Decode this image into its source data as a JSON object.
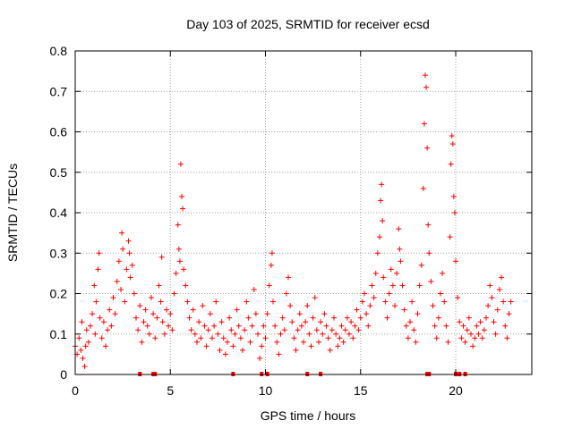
{
  "chart_data": {
    "type": "scatter",
    "title": "Day 103 of 2025, SRMTID for receiver ecsd",
    "xlabel": "GPS time / hours",
    "ylabel": "SRMTID / TECUs",
    "xlim": [
      0,
      24
    ],
    "ylim": [
      0,
      0.8
    ],
    "x_ticks": [
      0,
      5,
      10,
      15,
      20
    ],
    "x_tick_labels": [
      "0",
      "5",
      "10",
      "15",
      "20"
    ],
    "y_ticks": [
      0,
      0.1,
      0.2,
      0.3,
      0.4,
      0.5,
      0.6,
      0.7,
      0.8
    ],
    "y_tick_labels": [
      "0",
      "0.1",
      "0.2",
      "0.3",
      "0.4",
      "0.5",
      "0.6",
      "0.7",
      "0.8"
    ],
    "grid": true,
    "marker": "+",
    "marker_color": "#ff0000",
    "series": [
      {
        "name": "SRMTID",
        "points": [
          [
            0.0,
            0.07
          ],
          [
            0.1,
            0.05
          ],
          [
            0.2,
            0.09
          ],
          [
            0.3,
            0.06
          ],
          [
            0.35,
            0.13
          ],
          [
            0.4,
            0.04
          ],
          [
            0.5,
            0.02
          ],
          [
            0.55,
            0.07
          ],
          [
            0.6,
            0.11
          ],
          [
            0.7,
            0.08
          ],
          [
            0.8,
            0.12
          ],
          [
            0.9,
            0.15
          ],
          [
            1.0,
            0.22
          ],
          [
            1.05,
            0.1
          ],
          [
            1.1,
            0.18
          ],
          [
            1.2,
            0.26
          ],
          [
            1.25,
            0.3
          ],
          [
            1.3,
            0.14
          ],
          [
            1.4,
            0.09
          ],
          [
            1.5,
            0.13
          ],
          [
            1.6,
            0.07
          ],
          [
            1.7,
            0.11
          ],
          [
            1.8,
            0.16
          ],
          [
            1.9,
            0.12
          ],
          [
            2.0,
            0.19
          ],
          [
            2.1,
            0.15
          ],
          [
            2.2,
            0.23
          ],
          [
            2.3,
            0.28
          ],
          [
            2.4,
            0.21
          ],
          [
            2.45,
            0.35
          ],
          [
            2.5,
            0.31
          ],
          [
            2.6,
            0.18
          ],
          [
            2.7,
            0.26
          ],
          [
            2.8,
            0.33
          ],
          [
            2.85,
            0.3
          ],
          [
            2.9,
            0.24
          ],
          [
            3.0,
            0.27
          ],
          [
            3.1,
            0.2
          ],
          [
            3.2,
            0.14
          ],
          [
            3.3,
            0.11
          ],
          [
            3.4,
            0.17
          ],
          [
            3.5,
            0.08
          ],
          [
            3.6,
            0.13
          ],
          [
            3.7,
            0.16
          ],
          [
            3.8,
            0.12
          ],
          [
            3.9,
            0.1
          ],
          [
            4.0,
            0.19
          ],
          [
            4.1,
            0.15
          ],
          [
            4.2,
            0.09
          ],
          [
            4.3,
            0.14
          ],
          [
            4.4,
            0.22
          ],
          [
            4.5,
            0.18
          ],
          [
            4.55,
            0.29
          ],
          [
            4.6,
            0.13
          ],
          [
            4.7,
            0.1
          ],
          [
            4.8,
            0.16
          ],
          [
            4.9,
            0.12
          ],
          [
            5.0,
            0.15
          ],
          [
            5.1,
            0.11
          ],
          [
            5.2,
            0.2
          ],
          [
            5.3,
            0.25
          ],
          [
            5.4,
            0.37
          ],
          [
            5.45,
            0.31
          ],
          [
            5.5,
            0.28
          ],
          [
            5.55,
            0.52
          ],
          [
            5.6,
            0.44
          ],
          [
            5.65,
            0.41
          ],
          [
            5.7,
            0.26
          ],
          [
            5.8,
            0.22
          ],
          [
            5.9,
            0.18
          ],
          [
            6.0,
            0.14
          ],
          [
            6.1,
            0.11
          ],
          [
            6.2,
            0.16
          ],
          [
            6.3,
            0.1
          ],
          [
            6.4,
            0.08
          ],
          [
            6.5,
            0.13
          ],
          [
            6.6,
            0.09
          ],
          [
            6.7,
            0.17
          ],
          [
            6.8,
            0.12
          ],
          [
            6.9,
            0.07
          ],
          [
            7.0,
            0.11
          ],
          [
            7.1,
            0.15
          ],
          [
            7.2,
            0.09
          ],
          [
            7.3,
            0.12
          ],
          [
            7.4,
            0.18
          ],
          [
            7.5,
            0.1
          ],
          [
            7.6,
            0.06
          ],
          [
            7.7,
            0.13
          ],
          [
            7.8,
            0.09
          ],
          [
            7.9,
            0.05
          ],
          [
            8.0,
            0.08
          ],
          [
            8.1,
            0.14
          ],
          [
            8.2,
            0.11
          ],
          [
            8.3,
            0.07
          ],
          [
            8.4,
            0.1
          ],
          [
            8.5,
            0.16
          ],
          [
            8.6,
            0.12
          ],
          [
            8.7,
            0.09
          ],
          [
            8.8,
            0.06
          ],
          [
            8.9,
            0.11
          ],
          [
            9.0,
            0.18
          ],
          [
            9.1,
            0.14
          ],
          [
            9.2,
            0.08
          ],
          [
            9.3,
            0.12
          ],
          [
            9.4,
            0.21
          ],
          [
            9.5,
            0.15
          ],
          [
            9.6,
            0.1
          ],
          [
            9.7,
            0.04
          ],
          [
            9.8,
            0.07
          ],
          [
            9.9,
            0.12
          ],
          [
            10.0,
            0.09
          ],
          [
            10.1,
            0.15
          ],
          [
            10.2,
            0.22
          ],
          [
            10.3,
            0.27
          ],
          [
            10.35,
            0.3
          ],
          [
            10.4,
            0.18
          ],
          [
            10.5,
            0.12
          ],
          [
            10.6,
            0.08
          ],
          [
            10.7,
            0.05
          ],
          [
            10.8,
            0.1
          ],
          [
            10.9,
            0.14
          ],
          [
            11.0,
            0.11
          ],
          [
            11.1,
            0.2
          ],
          [
            11.2,
            0.24
          ],
          [
            11.3,
            0.17
          ],
          [
            11.4,
            0.13
          ],
          [
            11.5,
            0.09
          ],
          [
            11.6,
            0.06
          ],
          [
            11.7,
            0.11
          ],
          [
            11.8,
            0.15
          ],
          [
            11.9,
            0.12
          ],
          [
            12.0,
            0.08
          ],
          [
            12.1,
            0.13
          ],
          [
            12.2,
            0.17
          ],
          [
            12.3,
            0.1
          ],
          [
            12.4,
            0.07
          ],
          [
            12.5,
            0.14
          ],
          [
            12.6,
            0.19
          ],
          [
            12.7,
            0.11
          ],
          [
            12.8,
            0.08
          ],
          [
            12.9,
            0.13
          ],
          [
            13.0,
            0.1
          ],
          [
            13.1,
            0.15
          ],
          [
            13.2,
            0.12
          ],
          [
            13.3,
            0.09
          ],
          [
            13.4,
            0.06
          ],
          [
            13.5,
            0.11
          ],
          [
            13.6,
            0.14
          ],
          [
            13.7,
            0.1
          ],
          [
            13.8,
            0.07
          ],
          [
            13.9,
            0.09
          ],
          [
            14.0,
            0.12
          ],
          [
            14.1,
            0.08
          ],
          [
            14.2,
            0.11
          ],
          [
            14.3,
            0.14
          ],
          [
            14.4,
            0.1
          ],
          [
            14.5,
            0.13
          ],
          [
            14.6,
            0.09
          ],
          [
            14.7,
            0.12
          ],
          [
            14.8,
            0.16
          ],
          [
            14.9,
            0.11
          ],
          [
            15.0,
            0.14
          ],
          [
            15.1,
            0.18
          ],
          [
            15.2,
            0.2
          ],
          [
            15.3,
            0.15
          ],
          [
            15.4,
            0.12
          ],
          [
            15.5,
            0.17
          ],
          [
            15.6,
            0.22
          ],
          [
            15.7,
            0.19
          ],
          [
            15.8,
            0.25
          ],
          [
            15.9,
            0.3
          ],
          [
            16.0,
            0.34
          ],
          [
            16.05,
            0.43
          ],
          [
            16.1,
            0.47
          ],
          [
            16.15,
            0.38
          ],
          [
            16.2,
            0.24
          ],
          [
            16.3,
            0.18
          ],
          [
            16.4,
            0.14
          ],
          [
            16.5,
            0.2
          ],
          [
            16.6,
            0.26
          ],
          [
            16.7,
            0.22
          ],
          [
            16.8,
            0.17
          ],
          [
            16.9,
            0.25
          ],
          [
            17.0,
            0.36
          ],
          [
            17.05,
            0.31
          ],
          [
            17.1,
            0.28
          ],
          [
            17.2,
            0.22
          ],
          [
            17.3,
            0.16
          ],
          [
            17.4,
            0.12
          ],
          [
            17.5,
            0.09
          ],
          [
            17.6,
            0.13
          ],
          [
            17.7,
            0.18
          ],
          [
            17.8,
            0.11
          ],
          [
            17.9,
            0.08
          ],
          [
            18.0,
            0.15
          ],
          [
            18.1,
            0.22
          ],
          [
            18.2,
            0.27
          ],
          [
            18.3,
            0.46
          ],
          [
            18.35,
            0.62
          ],
          [
            18.4,
            0.74
          ],
          [
            18.45,
            0.71
          ],
          [
            18.5,
            0.56
          ],
          [
            18.55,
            0.37
          ],
          [
            18.6,
            0.3
          ],
          [
            18.7,
            0.23
          ],
          [
            18.8,
            0.17
          ],
          [
            18.9,
            0.12
          ],
          [
            19.0,
            0.09
          ],
          [
            19.1,
            0.14
          ],
          [
            19.2,
            0.2
          ],
          [
            19.3,
            0.25
          ],
          [
            19.4,
            0.18
          ],
          [
            19.5,
            0.12
          ],
          [
            19.6,
            0.08
          ],
          [
            19.7,
            0.34
          ],
          [
            19.75,
            0.52
          ],
          [
            19.8,
            0.59
          ],
          [
            19.85,
            0.57
          ],
          [
            19.9,
            0.44
          ],
          [
            19.95,
            0.4
          ],
          [
            20.0,
            0.28
          ],
          [
            20.1,
            0.19
          ],
          [
            20.2,
            0.13
          ],
          [
            20.3,
            0.09
          ],
          [
            20.4,
            0.12
          ],
          [
            20.5,
            0.08
          ],
          [
            20.6,
            0.11
          ],
          [
            20.7,
            0.14
          ],
          [
            20.8,
            0.1
          ],
          [
            20.9,
            0.07
          ],
          [
            21.0,
            0.09
          ],
          [
            21.1,
            0.12
          ],
          [
            21.2,
            0.1
          ],
          [
            21.3,
            0.13
          ],
          [
            21.4,
            0.09
          ],
          [
            21.5,
            0.11
          ],
          [
            21.6,
            0.14
          ],
          [
            21.7,
            0.17
          ],
          [
            21.8,
            0.22
          ],
          [
            21.9,
            0.19
          ],
          [
            22.0,
            0.13
          ],
          [
            22.1,
            0.1
          ],
          [
            22.2,
            0.16
          ],
          [
            22.3,
            0.21
          ],
          [
            22.4,
            0.24
          ],
          [
            22.5,
            0.18
          ],
          [
            22.6,
            0.12
          ],
          [
            22.7,
            0.09
          ],
          [
            22.8,
            0.15
          ],
          [
            22.9,
            0.18
          ]
        ]
      }
    ],
    "axis_flag_hours": [
      3.4,
      4.1,
      4.2,
      8.3,
      9.8,
      10.1,
      12.2,
      12.9,
      18.5,
      18.6,
      20.0,
      20.2,
      20.5
    ]
  }
}
